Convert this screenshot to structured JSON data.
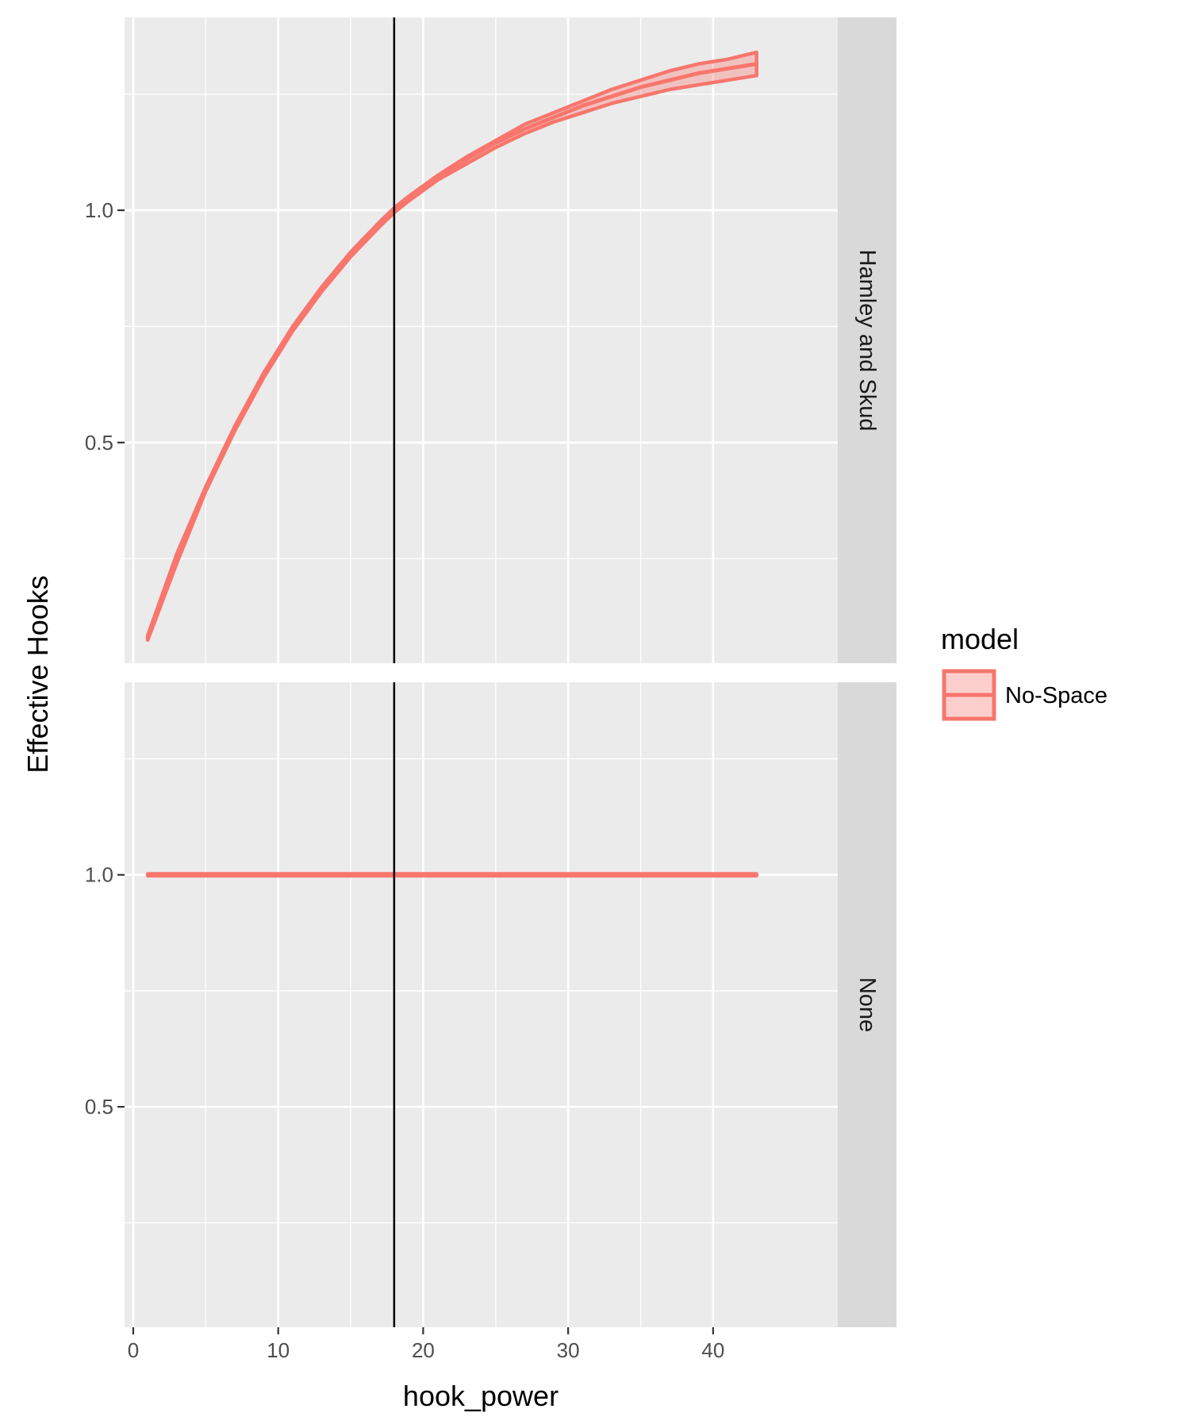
{
  "chart_data": {
    "type": "line",
    "xlabel": "hook_power",
    "ylabel": "Effective Hooks",
    "xlim": [
      -0.6,
      48.6
    ],
    "ylim": [
      0.025,
      1.415
    ],
    "x_ticks": [
      0,
      10,
      20,
      30,
      40
    ],
    "x_tick_labels": [
      "0",
      "10",
      "20",
      "30",
      "40"
    ],
    "y_ticks": [
      0.5,
      1.0
    ],
    "y_tick_labels": [
      "0.5",
      "1.0"
    ],
    "grid": true,
    "reference_line": {
      "x": 18
    },
    "legend": {
      "title": "model",
      "position": "right",
      "entries": [
        {
          "name": "No-Space",
          "color": "#f8766d"
        }
      ]
    },
    "panels": [
      {
        "strip_label": "Hamley and Skud",
        "series": [
          {
            "name": "No-Space",
            "color": "#f8766d",
            "x": [
              1,
              3,
              5,
              7,
              9,
              11,
              13,
              15,
              17,
              18,
              19,
              21,
              23,
              25,
              27,
              29,
              31,
              33,
              35,
              37,
              39,
              41,
              43
            ],
            "y": [
              0.08,
              0.25,
              0.4,
              0.53,
              0.645,
              0.745,
              0.83,
              0.905,
              0.97,
              1.0,
              1.025,
              1.07,
              1.11,
              1.145,
              1.175,
              1.2,
              1.225,
              1.245,
              1.265,
              1.28,
              1.295,
              1.305,
              1.315
            ],
            "y_low": [
              0.075,
              0.24,
              0.395,
              0.525,
              0.64,
              0.74,
              0.825,
              0.9,
              0.965,
              0.995,
              1.02,
              1.065,
              1.1,
              1.135,
              1.165,
              1.19,
              1.21,
              1.23,
              1.245,
              1.26,
              1.27,
              1.28,
              1.29
            ],
            "y_high": [
              0.085,
              0.26,
              0.405,
              0.535,
              0.65,
              0.75,
              0.835,
              0.91,
              0.975,
              1.005,
              1.03,
              1.075,
              1.115,
              1.15,
              1.185,
              1.21,
              1.235,
              1.26,
              1.28,
              1.3,
              1.315,
              1.325,
              1.34
            ]
          }
        ]
      },
      {
        "strip_label": "None",
        "series": [
          {
            "name": "No-Space",
            "color": "#f8766d",
            "x": [
              1,
              43
            ],
            "y": [
              1.0,
              1.0
            ],
            "y_low": [
              0.998,
              0.998
            ],
            "y_high": [
              1.002,
              1.002
            ]
          }
        ]
      }
    ]
  }
}
